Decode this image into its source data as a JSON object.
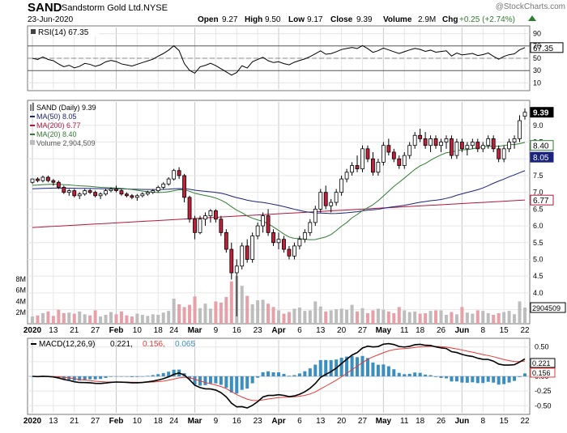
{
  "header": {
    "symbol": "SAND",
    "company": "Sandstorm Gold Ltd.",
    "exchange": "NYSE",
    "date": "23-Jun-2020",
    "watermark": "@StockCharts.com",
    "open_label": "Open",
    "open": "9.27",
    "high_label": "High",
    "high": "9.50",
    "low_label": "Low",
    "low": "9.17",
    "close_label": "Close",
    "close": "9.39",
    "volume_label": "Volume",
    "volume": "2.9M",
    "chg_label": "Chg",
    "chg": "+0.25 (+2.74%)"
  },
  "colors": {
    "up": "#e8e8e8",
    "down": "#c0203a",
    "ma50": "#1a237e",
    "ma200": "#b0183a",
    "ma20": "#2e7d32",
    "volume_up": "#bdbdbd",
    "volume_down": "#e8a0a8",
    "rsi": "#000000",
    "macd": "#000000",
    "signal": "#e53935",
    "hist": "#3a8fc0"
  },
  "rsi_panel": {
    "label": "RSI(14) 67.35",
    "current": "67.35",
    "ticks": [
      "90",
      "70",
      "50",
      "30",
      "10"
    ]
  },
  "price_panel": {
    "legend": [
      {
        "text": "SAND (Daily) 9.39",
        "color": "#000000"
      },
      {
        "text": "MA(50) 8.05",
        "color": "#1a237e"
      },
      {
        "text": "MA(200) 6.77",
        "color": "#b0183a"
      },
      {
        "text": "MA(20) 8.40",
        "color": "#2e7d32"
      },
      {
        "text": "Volume 2,904,509",
        "color": "#555555"
      }
    ],
    "price_ticks": [
      "9.0",
      "8.5",
      "8.0",
      "7.5",
      "7.0",
      "6.5",
      "6.0",
      "5.5",
      "5.0",
      "4.5",
      "4.0",
      "3.5"
    ],
    "volume_ticks": [
      "8M",
      "6M",
      "4M",
      "2M"
    ],
    "last_tags": [
      {
        "text": "9.39",
        "value": 9.39,
        "style": "black"
      },
      {
        "text": "8.40",
        "value": 8.4,
        "style": "white"
      },
      {
        "text": "8.05",
        "value": 8.05,
        "style": "blue"
      },
      {
        "text": "6.77",
        "value": 6.77,
        "style": "red"
      }
    ],
    "volume_tag": "2904509"
  },
  "macd_panel": {
    "label": "MACD(12,26,9)",
    "macd_value": "0.221,",
    "signal_value": "0.156,",
    "hist_value": "0.065",
    "ticks": [
      "0.50",
      "0.25",
      "0.00",
      "-0.25",
      "-0.50"
    ],
    "tag_macd": "0.221",
    "tag_signal": "0.156"
  },
  "x_axis": {
    "labels": [
      "2020",
      "13",
      "21",
      "27",
      "Feb",
      "10",
      "18",
      "24",
      "Mar",
      "9",
      "16",
      "23",
      "Apr",
      "6",
      "13",
      "20",
      "27",
      "May",
      "11",
      "18",
      "26",
      "Jun",
      "8",
      "15",
      "22"
    ]
  },
  "chart_data": {
    "type": "candlestick",
    "title": "Sandstorm Gold Ltd. (SAND) Daily",
    "ylim_price": [
      3.2,
      9.6
    ],
    "ylim_rsi": [
      0,
      100
    ],
    "ylim_macd": [
      -0.62,
      0.62
    ],
    "ylim_volume": [
      0,
      9000000
    ],
    "ohlc": [
      [
        7.3,
        7.4,
        7.25,
        7.4
      ],
      [
        7.4,
        7.45,
        7.3,
        7.35
      ],
      [
        7.35,
        7.5,
        7.3,
        7.45
      ],
      [
        7.45,
        7.5,
        7.3,
        7.35
      ],
      [
        7.35,
        7.4,
        7.2,
        7.3
      ],
      [
        7.3,
        7.35,
        7.1,
        7.15
      ],
      [
        7.15,
        7.2,
        6.95,
        7.0
      ],
      [
        7.0,
        7.1,
        6.9,
        7.05
      ],
      [
        7.05,
        7.1,
        6.85,
        6.9
      ],
      [
        6.9,
        7.0,
        6.8,
        6.95
      ],
      [
        6.95,
        7.1,
        6.9,
        7.05
      ],
      [
        7.05,
        7.1,
        6.95,
        7.0
      ],
      [
        7.0,
        7.05,
        6.85,
        6.9
      ],
      [
        6.9,
        7.0,
        6.8,
        6.95
      ],
      [
        6.95,
        7.1,
        6.9,
        7.05
      ],
      [
        7.05,
        7.15,
        7.0,
        7.1
      ],
      [
        7.1,
        7.2,
        7.0,
        7.05
      ],
      [
        7.05,
        7.1,
        6.9,
        6.95
      ],
      [
        6.95,
        7.0,
        6.85,
        6.9
      ],
      [
        6.9,
        6.95,
        6.8,
        6.85
      ],
      [
        6.85,
        6.95,
        6.75,
        6.9
      ],
      [
        6.9,
        7.0,
        6.85,
        6.95
      ],
      [
        6.95,
        7.05,
        6.9,
        7.0
      ],
      [
        7.0,
        7.1,
        6.95,
        7.05
      ],
      [
        7.05,
        7.2,
        7.0,
        7.15
      ],
      [
        7.15,
        7.3,
        7.1,
        7.25
      ],
      [
        7.25,
        7.45,
        7.2,
        7.4
      ],
      [
        7.4,
        7.7,
        7.35,
        7.65
      ],
      [
        7.65,
        7.75,
        7.4,
        7.5
      ],
      [
        7.5,
        7.55,
        6.7,
        6.85
      ],
      [
        6.85,
        6.9,
        6.1,
        6.2
      ],
      [
        6.2,
        6.3,
        5.6,
        5.8
      ],
      [
        5.8,
        6.3,
        5.75,
        6.2
      ],
      [
        6.2,
        6.4,
        6.0,
        6.3
      ],
      [
        6.3,
        6.5,
        6.1,
        6.45
      ],
      [
        6.45,
        6.5,
        6.1,
        6.2
      ],
      [
        6.2,
        6.3,
        5.7,
        5.8
      ],
      [
        5.8,
        5.9,
        5.2,
        5.3
      ],
      [
        5.3,
        5.5,
        4.4,
        4.6
      ],
      [
        4.6,
        5.0,
        3.3,
        4.8
      ],
      [
        4.8,
        5.5,
        4.7,
        5.4
      ],
      [
        5.4,
        5.6,
        4.9,
        5.0
      ],
      [
        5.0,
        5.8,
        4.9,
        5.7
      ],
      [
        5.7,
        6.1,
        5.6,
        6.0
      ],
      [
        6.0,
        6.4,
        5.8,
        6.3
      ],
      [
        6.3,
        6.5,
        5.7,
        5.8
      ],
      [
        5.8,
        5.9,
        5.4,
        5.5
      ],
      [
        5.5,
        5.8,
        5.3,
        5.6
      ],
      [
        5.6,
        5.7,
        5.2,
        5.3
      ],
      [
        5.3,
        5.4,
        5.0,
        5.1
      ],
      [
        5.1,
        5.5,
        5.0,
        5.4
      ],
      [
        5.4,
        5.7,
        5.3,
        5.6
      ],
      [
        5.6,
        5.9,
        5.5,
        5.8
      ],
      [
        5.8,
        6.2,
        5.7,
        6.1
      ],
      [
        6.1,
        6.6,
        6.0,
        6.5
      ],
      [
        6.5,
        7.1,
        6.4,
        7.0
      ],
      [
        7.0,
        7.2,
        6.5,
        6.6
      ],
      [
        6.6,
        6.8,
        6.4,
        6.7
      ],
      [
        6.7,
        7.1,
        6.6,
        7.0
      ],
      [
        7.0,
        7.5,
        6.9,
        7.4
      ],
      [
        7.4,
        7.7,
        7.3,
        7.6
      ],
      [
        7.6,
        7.9,
        7.5,
        7.8
      ],
      [
        7.8,
        8.1,
        7.6,
        7.7
      ],
      [
        7.7,
        8.4,
        7.6,
        8.3
      ],
      [
        8.3,
        8.4,
        7.9,
        8.0
      ],
      [
        8.0,
        8.2,
        7.5,
        7.6
      ],
      [
        7.6,
        8.0,
        7.5,
        7.9
      ],
      [
        7.9,
        8.5,
        7.8,
        8.4
      ],
      [
        8.4,
        8.6,
        8.1,
        8.2
      ],
      [
        8.2,
        8.3,
        7.9,
        8.0
      ],
      [
        8.0,
        8.1,
        7.7,
        7.8
      ],
      [
        7.8,
        8.2,
        7.7,
        8.1
      ],
      [
        8.1,
        8.5,
        8.0,
        8.4
      ],
      [
        8.4,
        8.8,
        8.3,
        8.7
      ],
      [
        8.7,
        8.9,
        8.5,
        8.6
      ],
      [
        8.6,
        8.8,
        8.3,
        8.4
      ],
      [
        8.4,
        8.7,
        8.2,
        8.6
      ],
      [
        8.6,
        8.7,
        8.3,
        8.4
      ],
      [
        8.4,
        8.6,
        8.2,
        8.5
      ],
      [
        8.5,
        8.7,
        8.3,
        8.6
      ],
      [
        8.6,
        8.7,
        8.0,
        8.1
      ],
      [
        8.1,
        8.6,
        8.0,
        8.5
      ],
      [
        8.5,
        8.6,
        8.2,
        8.3
      ],
      [
        8.3,
        8.5,
        8.1,
        8.4
      ],
      [
        8.4,
        8.6,
        8.3,
        8.5
      ],
      [
        8.5,
        8.6,
        8.2,
        8.3
      ],
      [
        8.3,
        8.5,
        8.2,
        8.4
      ],
      [
        8.4,
        8.7,
        8.3,
        8.6
      ],
      [
        8.6,
        8.7,
        8.2,
        8.3
      ],
      [
        8.3,
        8.4,
        7.9,
        8.0
      ],
      [
        8.0,
        8.4,
        7.9,
        8.3
      ],
      [
        8.3,
        8.6,
        8.2,
        8.5
      ],
      [
        8.5,
        8.7,
        8.3,
        8.6
      ],
      [
        8.6,
        9.3,
        8.5,
        9.14
      ],
      [
        9.27,
        9.5,
        9.17,
        9.39
      ]
    ],
    "volume_millions": [
      1.3,
      1.5,
      1.9,
      2.2,
      1.4,
      2.5,
      1.9,
      2.0,
      1.8,
      2.2,
      1.7,
      1.5,
      2.4,
      1.3,
      1.6,
      2.1,
      1.7,
      2.2,
      1.5,
      1.3,
      1.8,
      1.6,
      1.4,
      1.7,
      1.6,
      2.0,
      2.3,
      4.5,
      3.5,
      3.0,
      3.4,
      4.9,
      2.8,
      3.6,
      2.7,
      4.0,
      3.8,
      4.8,
      7.6,
      8.6,
      6.8,
      5.0,
      3.5,
      4.2,
      4.3,
      3.6,
      3.0,
      2.4,
      1.8,
      2.1,
      2.7,
      2.9,
      2.3,
      2.4,
      4.0,
      3.1,
      2.2,
      2.4,
      2.6,
      2.7,
      2.5,
      3.4,
      2.2,
      2.8,
      1.9,
      2.4,
      2.7,
      2.5,
      2.2,
      1.9,
      3.0,
      2.4,
      2.1,
      2.2,
      1.8,
      1.9,
      2.3,
      2.4,
      2.4,
      1.6,
      2.1,
      1.7,
      3.0,
      2.0,
      1.8,
      2.4,
      2.3,
      1.9,
      1.6,
      1.9,
      2.1,
      2.3,
      1.7,
      4.0,
      2.9
    ],
    "sma20_end": 8.4,
    "sma50_end": 8.05,
    "sma200_end": 6.77,
    "rsi_end": 67.35,
    "macd_end": 0.221,
    "signal_end": 0.156,
    "hist_end": 0.065
  }
}
